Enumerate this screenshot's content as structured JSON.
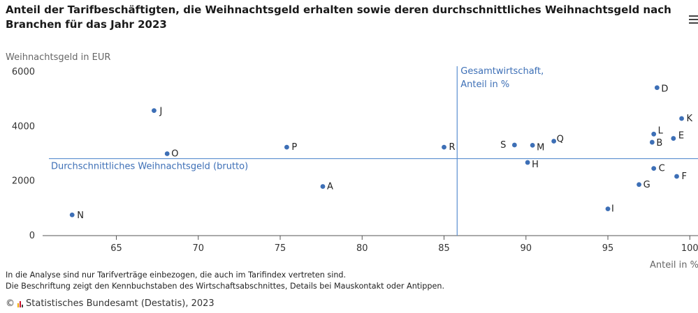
{
  "chart_data": {
    "type": "scatter",
    "title": "Anteil der Tarifbeschäftigten, die Weihnachtsgeld erhalten sowie deren durchschnittliches Weihnachtsgeld nach Branchen für das Jahr 2023",
    "ylabel": "Weihnachtsgeld in EUR",
    "xlabel": "Anteil in %",
    "xlim": [
      60.5,
      100.5
    ],
    "ylim": [
      0,
      6000
    ],
    "xticks": [
      "65",
      "70",
      "75",
      "80",
      "85",
      "90",
      "95",
      "100"
    ],
    "yticks": [
      "0",
      "2000",
      "4000",
      "6000"
    ],
    "grid": false,
    "point_color": "#3d6fb6",
    "reference_line_color": "#5b8fd0",
    "reference_lines": {
      "vertical": {
        "x": 85.8,
        "label_line1": "Gesamtwirtschaft,",
        "label_line2": "Anteil in %"
      },
      "horizontal": {
        "y": 2820,
        "label": "Durchschnittliches Weihnachtsgeld (brutto)"
      }
    },
    "points": [
      {
        "label": "A",
        "x": 77.6,
        "y": 1800
      },
      {
        "label": "B",
        "x": 97.7,
        "y": 3420
      },
      {
        "label": "C",
        "x": 97.8,
        "y": 2460
      },
      {
        "label": "D",
        "x": 98.0,
        "y": 5420
      },
      {
        "label": "E",
        "x": 99.0,
        "y": 3560
      },
      {
        "label": "F",
        "x": 99.2,
        "y": 2170
      },
      {
        "label": "G",
        "x": 96.9,
        "y": 1870
      },
      {
        "label": "H",
        "x": 90.1,
        "y": 2680
      },
      {
        "label": "I",
        "x": 95.0,
        "y": 980
      },
      {
        "label": "J",
        "x": 67.3,
        "y": 4580
      },
      {
        "label": "K",
        "x": 99.5,
        "y": 4290
      },
      {
        "label": "L",
        "x": 97.8,
        "y": 3720
      },
      {
        "label": "M",
        "x": 90.4,
        "y": 3310
      },
      {
        "label": "N",
        "x": 62.3,
        "y": 760
      },
      {
        "label": "O",
        "x": 68.1,
        "y": 3000
      },
      {
        "label": "P",
        "x": 75.4,
        "y": 3240
      },
      {
        "label": "Q",
        "x": 91.7,
        "y": 3460
      },
      {
        "label": "R",
        "x": 85.0,
        "y": 3240
      },
      {
        "label": "S",
        "x": 89.3,
        "y": 3320
      }
    ]
  },
  "footnotes": [
    "In die Analyse sind nur Tarifverträge einbezogen, die auch im Tarifindex vertreten sind.",
    "Die Beschriftung zeigt den Kennbuchstaben des Wirtschaftsabschnittes, Details bei Mauskontakt oder Antippen."
  ],
  "source": {
    "copyright": "©",
    "text": "Statistisches Bundesamt (Destatis), 2023"
  },
  "menu_icon": "hamburger-menu-icon"
}
